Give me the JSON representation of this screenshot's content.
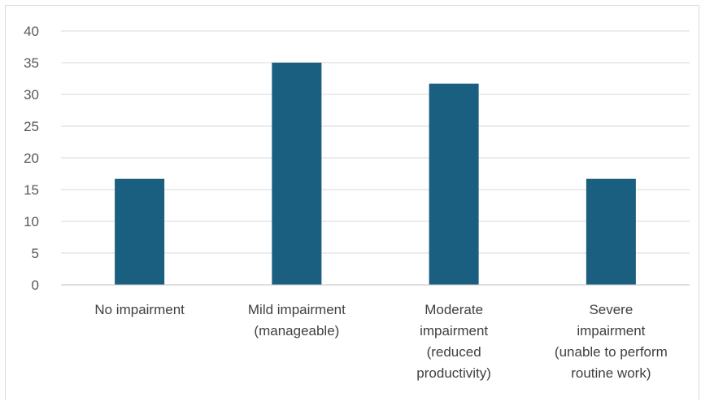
{
  "chart_data": {
    "type": "bar",
    "categories": [
      [
        "No impairment"
      ],
      [
        "Mild impairment",
        "(manageable)"
      ],
      [
        "Moderate",
        "impairment",
        "(reduced",
        "productivity)"
      ],
      [
        "Severe",
        "impairment",
        "(unable to perform",
        "routine work)"
      ]
    ],
    "values": [
      16.7,
      35.0,
      31.7,
      16.7
    ],
    "ylim": [
      0,
      40
    ],
    "yticks": [
      0,
      5,
      10,
      15,
      20,
      25,
      30,
      35,
      40
    ],
    "grid": true,
    "legend": "none",
    "colors": {
      "bar": "#1a5e80",
      "grid": "#d9d9d9",
      "axis": "#bfbfbf"
    }
  }
}
